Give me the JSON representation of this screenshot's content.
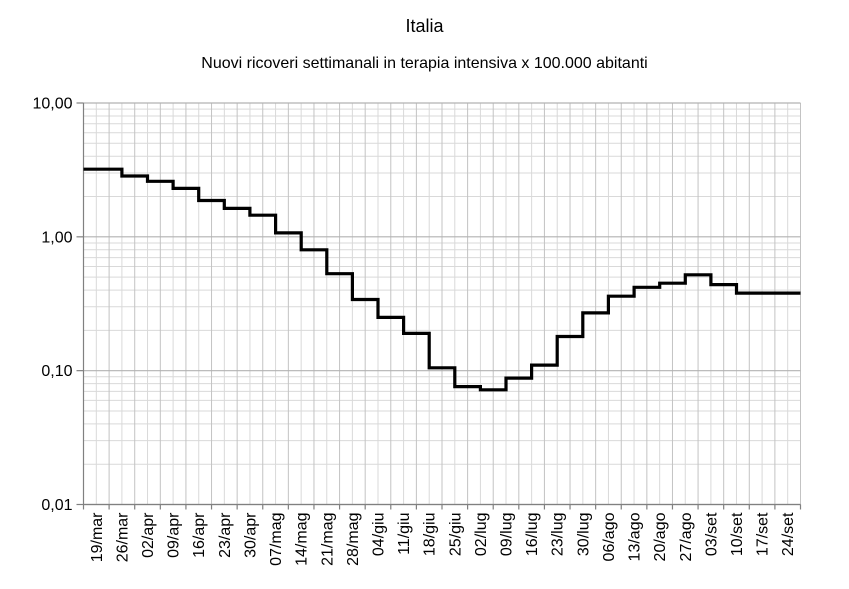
{
  "title": "Italia",
  "subtitle": "Nuovi ricoveri settimanali in terapia intensiva x 100.000 abitanti",
  "chart_data": {
    "type": "line",
    "line_style": "step-after-center",
    "title": "Italia",
    "subtitle": "Nuovi ricoveri settimanali in terapia intensiva x 100.000 abitanti",
    "xlabel": "",
    "ylabel": "",
    "y_scale": "log",
    "ylim": [
      0.01,
      10
    ],
    "grid": "major and minor, light gray",
    "legend": "none",
    "y_tick_labels": [
      "10,00",
      "1,00",
      "0,10",
      "0,01"
    ],
    "y_tick_values": [
      10,
      1,
      0.1,
      0.01
    ],
    "categories": [
      "19/mar",
      "26/mar",
      "02/apr",
      "09/apr",
      "16/apr",
      "23/apr",
      "30/apr",
      "07/mag",
      "14/mag",
      "21/mag",
      "28/mag",
      "04/giu",
      "11/giu",
      "18/giu",
      "25/giu",
      "02/lug",
      "09/lug",
      "16/lug",
      "23/lug",
      "30/lug",
      "06/ago",
      "13/ago",
      "20/ago",
      "27/ago",
      "03/set",
      "10/set",
      "17/set",
      "24/set"
    ],
    "values": [
      3.2,
      2.85,
      2.6,
      2.3,
      1.87,
      1.63,
      1.45,
      1.07,
      0.8,
      0.53,
      0.34,
      0.25,
      0.19,
      0.105,
      0.076,
      0.072,
      0.088,
      0.11,
      0.18,
      0.27,
      0.36,
      0.42,
      0.45,
      0.52,
      0.44,
      0.38,
      0.38,
      0.38
    ],
    "line_color": "#000000",
    "line_width": 3.2,
    "major_grid_color": "#b2b2b2",
    "minor_grid_color": "#d9d9d9",
    "vertical_boundary_grid_color": "#c3c3c3",
    "axis_color": "#808080",
    "text_color": "#000000",
    "background_color": "#ffffff"
  }
}
